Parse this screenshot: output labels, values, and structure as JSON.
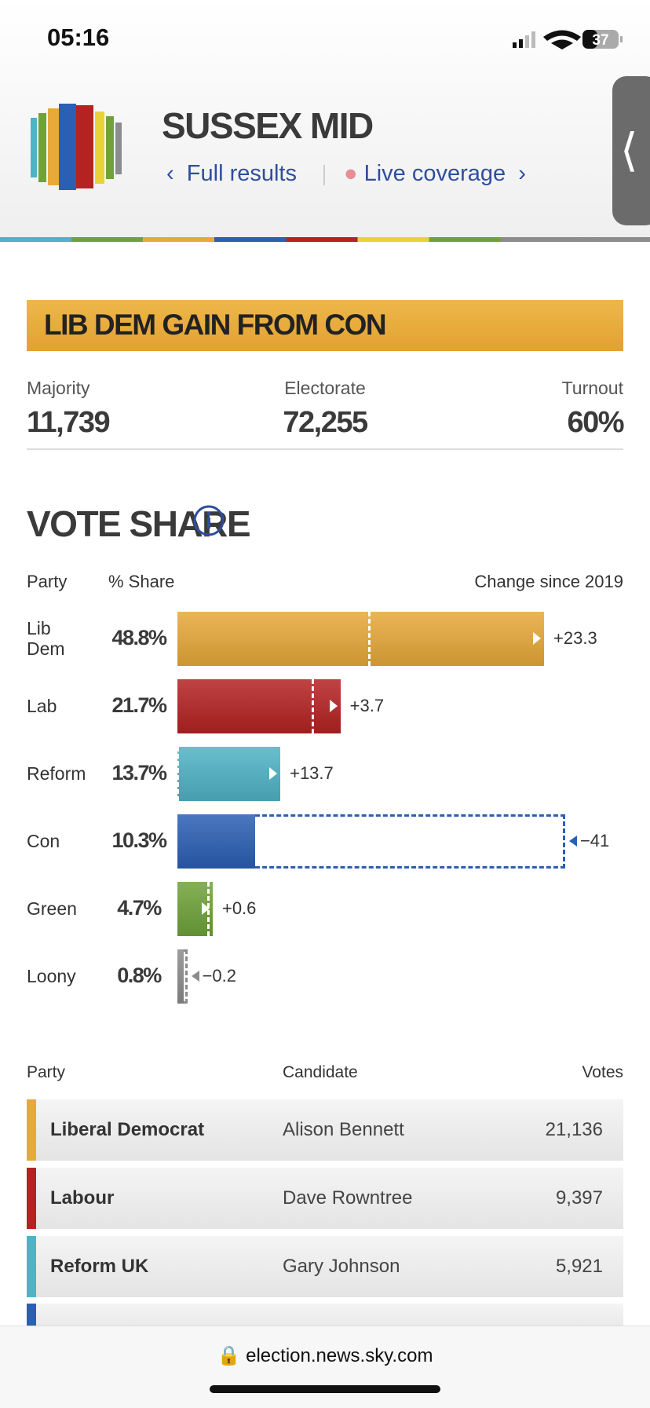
{
  "status_bar": {
    "time": "05:16",
    "battery": "37"
  },
  "header": {
    "title": "SUSSEX MID",
    "links": [
      "Full results",
      "Live coverage"
    ]
  },
  "result": "LIB DEM GAIN FROM CON",
  "stats": [
    {
      "label": "Majority",
      "value": "11,739"
    },
    {
      "label": "Electorate",
      "value": "72,255"
    },
    {
      "label": "Turnout",
      "value": "60%"
    }
  ],
  "chart_data": {
    "type": "bar",
    "orientation": "horizontal",
    "title": "VOTE SHARE",
    "x_label": "Party",
    "categories": [
      "Lib Dem",
      "Lab",
      "Reform",
      "Con",
      "Green",
      "Loony"
    ],
    "colors": [
      "#e8a93a",
      "#b52222",
      "#4fb3c6",
      "#2b5fb4",
      "#6fa33a",
      "#8c8c8c"
    ],
    "series": [
      {
        "name": "% Share",
        "values": [
          48.8,
          21.7,
          13.7,
          10.3,
          4.7,
          0.8
        ],
        "value_labels": [
          "48.8%",
          "21.7%",
          "13.7%",
          "10.3%",
          "4.7%",
          "0.8%"
        ]
      },
      {
        "name": "Change since 2019",
        "values": [
          23.3,
          3.7,
          13.7,
          -41,
          0.6,
          -0.2
        ],
        "value_labels": [
          "+23.3",
          "+3.7",
          "+13.7",
          "−41",
          "+0.6",
          "−0.2"
        ]
      }
    ]
  },
  "table": {
    "headers": [
      "Party",
      "Candidate",
      "Votes"
    ],
    "rows": [
      {
        "color": "#e8a93a",
        "party": "Liberal Democrat",
        "candidate": "Alison Bennett",
        "votes": "21,136"
      },
      {
        "color": "#b52222",
        "party": "Labour",
        "candidate": "Dave Rowntree",
        "votes": "9,397"
      },
      {
        "color": "#4fb3c6",
        "party": "Reform UK",
        "candidate": "Gary Johnson",
        "votes": "5,921"
      }
    ]
  },
  "url": "election.news.sky.com"
}
